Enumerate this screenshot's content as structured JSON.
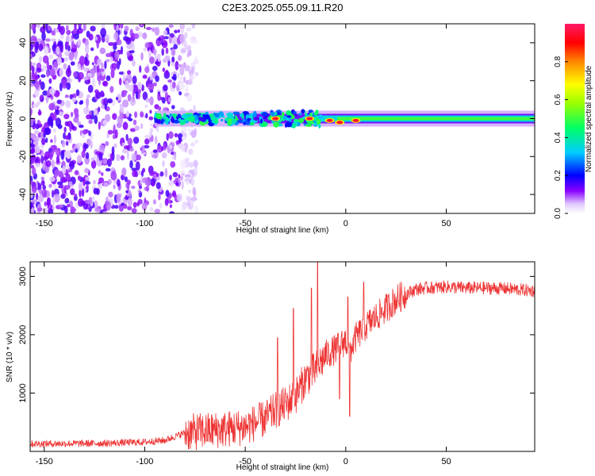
{
  "title": "C2E3.2025.055.09.11.R20",
  "chart_data": [
    {
      "type": "heatmap",
      "xlabel": "Height of straight line (km)",
      "ylabel": "Frequency (Hz)",
      "xlim": [
        -157,
        94
      ],
      "ylim": [
        -50,
        50
      ],
      "xticks": [
        -150,
        -100,
        -50,
        0,
        50
      ],
      "xtick_labels": [
        "-150",
        "-100",
        "-50",
        "0",
        "50"
      ],
      "yticks": [
        -40,
        -20,
        0,
        20,
        40
      ],
      "ytick_labels": [
        "-40",
        "-20",
        "0",
        "20",
        "40"
      ],
      "colorbar": {
        "label": "Normalized spectral amplitude",
        "range": [
          0,
          1
        ],
        "ticks": [
          0.0,
          0.2,
          0.4,
          0.6,
          0.8
        ],
        "tick_labels": [
          "0.0",
          "0.2",
          "0.4",
          "0.6",
          "0.8"
        ]
      },
      "features": [
        {
          "kind": "noise",
          "x_range": [
            -157,
            -82
          ],
          "y_range": [
            -50,
            50
          ],
          "amplitude": 0.12
        },
        {
          "kind": "band",
          "x_range": [
            -95,
            94
          ],
          "center": 0,
          "amplitude": 0.4
        },
        {
          "kind": "hotspots",
          "points": [
            [
              -35,
              0
            ],
            [
              -18,
              0
            ],
            [
              -8,
              -1
            ],
            [
              -3,
              -2
            ],
            [
              5,
              -1
            ]
          ],
          "amplitude": 0.95
        }
      ]
    },
    {
      "type": "line",
      "xlabel": "Height of straight line (km)",
      "ylabel": "SNR (10 * v/v)",
      "xlim": [
        -157,
        94
      ],
      "ylim": [
        0,
        3250
      ],
      "xticks": [
        -150,
        -100,
        -50,
        0,
        50
      ],
      "xtick_labels": [
        "-150",
        "-100",
        "-50",
        "0",
        "50"
      ],
      "yticks": [
        1000,
        2000,
        3000
      ],
      "ytick_labels": [
        "1000",
        "2000",
        "3000"
      ],
      "color": "#ee3333",
      "envelope": {
        "x": [
          -157,
          -120,
          -100,
          -90,
          -80,
          -70,
          -60,
          -50,
          -40,
          -35,
          -30,
          -25,
          -20,
          -15,
          -12,
          -10,
          -5,
          0,
          2,
          5,
          10,
          15,
          20,
          25,
          30,
          35,
          40,
          50,
          60,
          70,
          80,
          94
        ],
        "y": [
          130,
          140,
          160,
          190,
          320,
          350,
          380,
          420,
          560,
          700,
          800,
          950,
          1250,
          1400,
          1550,
          1650,
          1750,
          1900,
          1700,
          1950,
          2150,
          2300,
          2450,
          2600,
          2700,
          2780,
          2800,
          2820,
          2800,
          2800,
          2790,
          2750
        ]
      },
      "spikes": [
        {
          "x": -14,
          "y": 3250
        },
        {
          "x": -17,
          "y": 2800
        },
        {
          "x": -26,
          "y": 2450
        },
        {
          "x": -34,
          "y": 1950
        },
        {
          "x": 1,
          "y": 2650
        },
        {
          "x": 9,
          "y": 2900
        },
        {
          "x": -3,
          "y": 900
        },
        {
          "x": 2,
          "y": 600
        }
      ]
    }
  ]
}
